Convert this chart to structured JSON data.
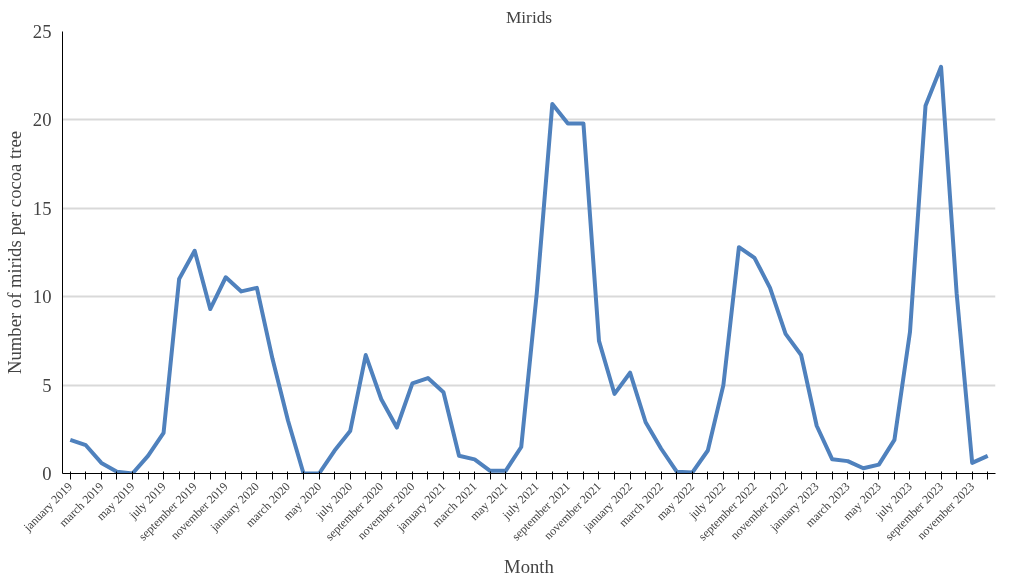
{
  "chart_data": {
    "type": "line",
    "title": "Mirids",
    "xlabel": "Month",
    "ylabel": "Number of mirids per cocoa tree",
    "categories": [
      "january 2019",
      null,
      "march 2019",
      null,
      "may 2019",
      null,
      "july 2019",
      null,
      "september 2019",
      null,
      "november 2019",
      null,
      "january 2020",
      null,
      "march 2020",
      null,
      "may 2020",
      null,
      "july 2020",
      null,
      "september 2020",
      null,
      "november 2020",
      null,
      "january 2021",
      null,
      "march 2021",
      null,
      "may 2021",
      null,
      "july 2021",
      null,
      "september 2021",
      null,
      "november 2021",
      null,
      "january 2022",
      null,
      "march 2022",
      null,
      "may 2022",
      null,
      "july 2022",
      null,
      "september 2022",
      null,
      "november 2022",
      null,
      "january 2023",
      null,
      "march 2023",
      null,
      "may 2023",
      null,
      "july 2023",
      null,
      "september 2023",
      null,
      "november 2023",
      null
    ],
    "series": [
      {
        "color": "#4f81bd",
        "values": [
          1.9,
          1.6,
          0.6,
          0.1,
          0,
          1.0,
          2.3,
          11.0,
          12.6,
          9.3,
          11.1,
          10.3,
          10.5,
          6.5,
          3.0,
          0,
          0,
          1.3,
          2.4,
          6.7,
          4.2,
          2.6,
          5.1,
          5.4,
          4.6,
          1.0,
          0.8,
          0.15,
          0.15,
          1.5,
          10.2,
          20.9,
          19.8,
          19.8,
          7.5,
          4.5,
          5.7,
          2.9,
          1.4,
          0.1,
          0.05,
          1.3,
          5.0,
          12.8,
          12.2,
          10.5,
          7.9,
          6.7,
          2.7,
          0.8,
          0.7,
          0.3,
          0.5,
          1.9,
          8.0,
          20.8,
          23.0,
          10.2,
          0.6,
          1.0
        ]
      }
    ],
    "ylim": [
      0,
      25
    ],
    "yticks": [
      0,
      5,
      10,
      15,
      20,
      25
    ],
    "grid": "y",
    "marker": "none",
    "line_style": "solid"
  }
}
